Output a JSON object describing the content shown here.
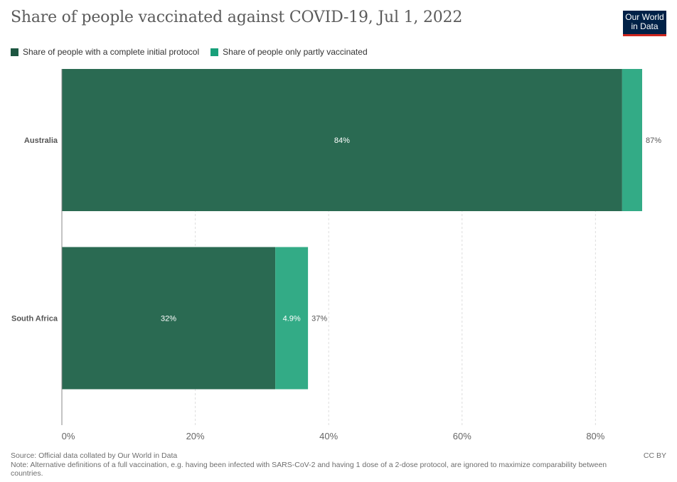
{
  "header": {
    "title": "Share of people vaccinated against COVID-19, Jul 1, 2022",
    "logo_line1": "Our World",
    "logo_line2": "in Data"
  },
  "footer": {
    "source": "Source: Official data collated by Our World in Data",
    "note": "Note: Alternative definitions of a full vaccination, e.g. having been infected with SARS-CoV-2 and having 1 dose of a 2-dose protocol, are ignored to maximize comparability between countries.",
    "license": "CC BY"
  },
  "colors": {
    "complete": "#2a6a52",
    "partial": "#33ab86",
    "grid": "#dddddd",
    "axis": "#888888"
  },
  "chart_data": {
    "type": "bar",
    "orientation": "horizontal",
    "stacked": true,
    "categories": [
      "Australia",
      "South Africa"
    ],
    "series": [
      {
        "name": "Share of people with a complete initial protocol",
        "values": [
          84,
          32
        ],
        "labels": [
          "84%",
          "32%"
        ]
      },
      {
        "name": "Share of people only partly vaccinated",
        "values": [
          3,
          4.9
        ],
        "labels": [
          "",
          "4.9%"
        ]
      }
    ],
    "totals": [
      87,
      37
    ],
    "total_labels": [
      "87%",
      "37%"
    ],
    "xlim": [
      0,
      87
    ],
    "xticks": [
      0,
      20,
      40,
      60,
      80
    ],
    "xtick_labels": [
      "0%",
      "20%",
      "40%",
      "60%",
      "80%"
    ],
    "grid": true,
    "legend_position": "top-left"
  }
}
